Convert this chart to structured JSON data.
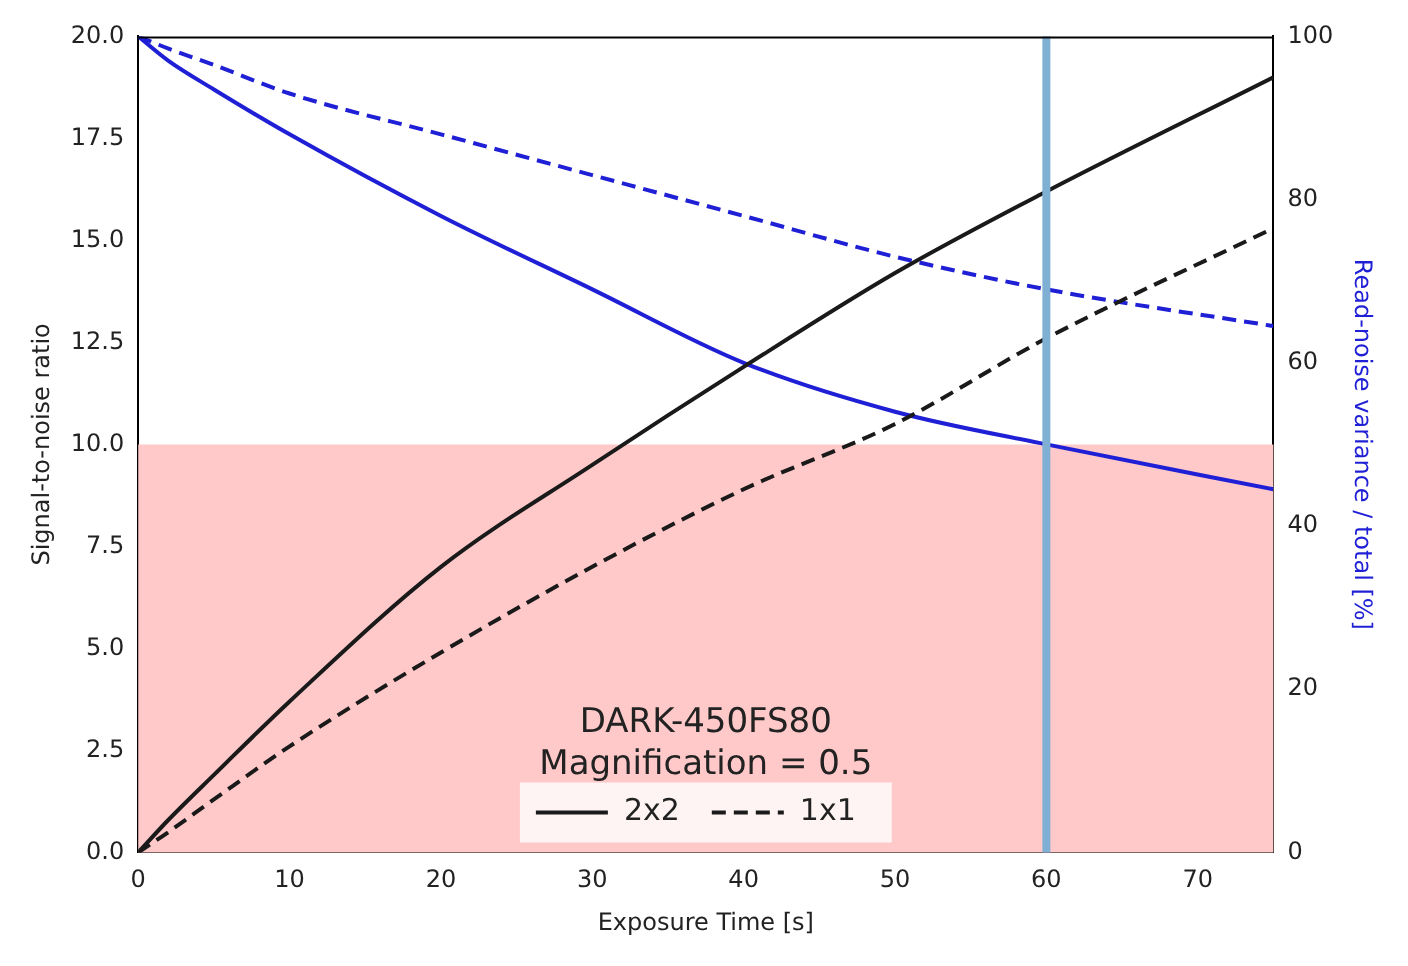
{
  "chart_data": {
    "type": "line",
    "xlabel": "Exposure Time [s]",
    "ylabel": "Signal-to-noise ratio",
    "y2label": "Read-noise variance / total [%]",
    "legend_title": "DARK-450FS80\nMagnification = 0.5",
    "x": [
      0,
      2,
      5,
      10,
      20,
      30,
      40,
      50,
      60,
      75
    ],
    "series": [
      {
        "name": "2x2",
        "color": "#1a1a1a",
        "line_style": "solid",
        "values": [
          0,
          0.8,
          1.9,
          3.7,
          7.0,
          9.5,
          11.9,
          14.2,
          16.2,
          19.0
        ]
      },
      {
        "name": "1x1",
        "color": "#1a1a1a",
        "line_style": "dashed",
        "values": [
          0,
          0.5,
          1.3,
          2.6,
          4.9,
          7.0,
          8.9,
          10.5,
          12.6,
          15.3
        ]
      },
      {
        "color": "#1f1fd6",
        "line_style": "solid",
        "axis": "y2",
        "values": [
          100,
          97,
          93.5,
          88,
          78,
          69,
          60,
          54,
          50,
          44.5
        ]
      },
      {
        "color": "#1f1fd6",
        "line_style": "dashed",
        "axis": "y2",
        "values": [
          100,
          98.5,
          96.5,
          93,
          88,
          83,
          78,
          73,
          69,
          64.5
        ]
      }
    ],
    "xlim": [
      0,
      75
    ],
    "xticks": [
      0,
      10,
      20,
      30,
      40,
      50,
      60,
      70
    ],
    "ylim": [
      0,
      20
    ],
    "yticks": [
      {
        "value": 0,
        "label": "0.0"
      },
      {
        "value": 2.5,
        "label": "2.5"
      },
      {
        "value": 5,
        "label": "5.0"
      },
      {
        "value": 7.5,
        "label": "7.5"
      },
      {
        "value": 10,
        "label": "10.0"
      },
      {
        "value": 12.5,
        "label": "12.5"
      },
      {
        "value": 15,
        "label": "15.0"
      },
      {
        "value": 17.5,
        "label": "17.5"
      },
      {
        "value": 20,
        "label": "20.0"
      }
    ],
    "y2lim": [
      0,
      100
    ],
    "y2ticks": [
      0,
      20,
      40,
      60,
      80,
      100
    ],
    "ref_lines": [
      {
        "axis": "x",
        "value": 60,
        "color": "#80afd4"
      }
    ],
    "bands": [
      {
        "axis": "y",
        "from": 0,
        "to": 10,
        "color": "#ffc9c9"
      }
    ],
    "grid": false,
    "legend": "bottom",
    "marker": "none"
  }
}
